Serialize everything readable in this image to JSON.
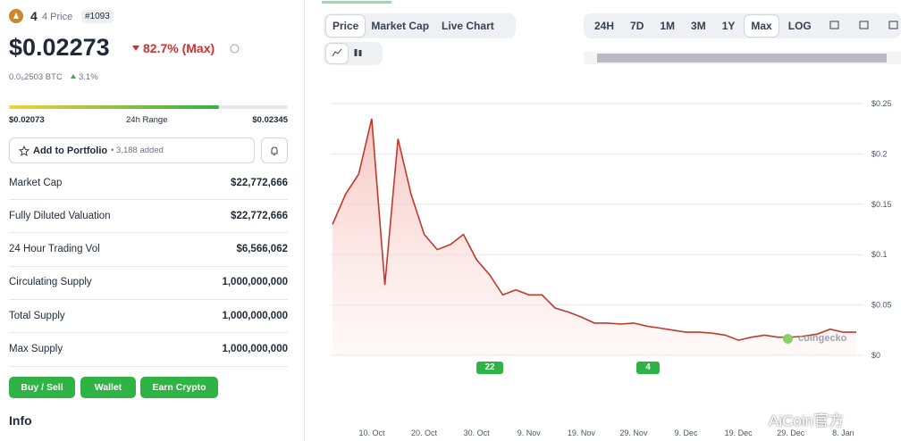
{
  "header": {
    "symbol": "4",
    "name_label": "4 Price",
    "rank": "#1093"
  },
  "price": {
    "value": "$0.02273",
    "change": "82.7% (Max)",
    "btc": "0.0₆2503 BTC",
    "btc_change": "3.1%"
  },
  "range": {
    "low": "$0.02073",
    "label": "24h Range",
    "high": "$0.02345"
  },
  "portfolio": {
    "button": "Add to Portfolio",
    "added": "• 3,188 added"
  },
  "stats": [
    {
      "label": "Market Cap",
      "value": "$22,772,666"
    },
    {
      "label": "Fully Diluted Valuation",
      "value": "$22,772,666"
    },
    {
      "label": "24 Hour Trading Vol",
      "value": "$6,566,062"
    },
    {
      "label": "Circulating Supply",
      "value": "1,000,000,000"
    },
    {
      "label": "Total Supply",
      "value": "1,000,000,000"
    },
    {
      "label": "Max Supply",
      "value": "1,000,000,000"
    }
  ],
  "actions": [
    "Buy / Sell",
    "Wallet",
    "Earn Crypto"
  ],
  "info": "Info",
  "tabs": [
    "Price",
    "Market Cap",
    "Live Chart"
  ],
  "ranges": [
    "24H",
    "7D",
    "1M",
    "3M",
    "1Y",
    "Max",
    "LOG"
  ],
  "badges": [
    "22",
    "4"
  ],
  "watermark": "coingecko",
  "corner_mark": "AiCoin官方",
  "chart_data": {
    "type": "line",
    "categories": [
      null,
      null,
      null,
      "10. Oct",
      null,
      null,
      null,
      "20. Oct",
      null,
      null,
      null,
      "30. Oct",
      null,
      null,
      null,
      "9. Nov",
      null,
      null,
      null,
      "19. Nov",
      null,
      null,
      null,
      "29. Nov",
      null,
      null,
      null,
      "9. Dec",
      null,
      null,
      null,
      "19. Dec",
      null,
      null,
      null,
      "29. Dec",
      null,
      null,
      null,
      "8. Jan",
      null
    ],
    "values": [
      0.13,
      0.16,
      0.18,
      0.235,
      0.07,
      0.215,
      0.16,
      0.12,
      0.105,
      0.11,
      0.12,
      0.095,
      0.08,
      0.06,
      0.065,
      0.06,
      0.06,
      0.047,
      0.043,
      0.038,
      0.032,
      0.032,
      0.031,
      0.032,
      0.029,
      0.027,
      0.025,
      0.023,
      0.023,
      0.022,
      0.02,
      0.015,
      0.018,
      0.02,
      0.018,
      0.018,
      0.019,
      0.021,
      0.026,
      0.023,
      0.023
    ],
    "color": "#c0392b",
    "ylim": [
      0,
      0.25
    ],
    "yticks": [
      {
        "value": 0,
        "label": "$0"
      },
      {
        "value": 0.05,
        "label": "$0.05"
      },
      {
        "value": 0.1,
        "label": "$0.1"
      },
      {
        "value": 0.15,
        "label": "$0.15"
      },
      {
        "value": 0.2,
        "label": "$0.2"
      },
      {
        "value": 0.25,
        "label": "$0.25"
      }
    ],
    "grid": true
  }
}
